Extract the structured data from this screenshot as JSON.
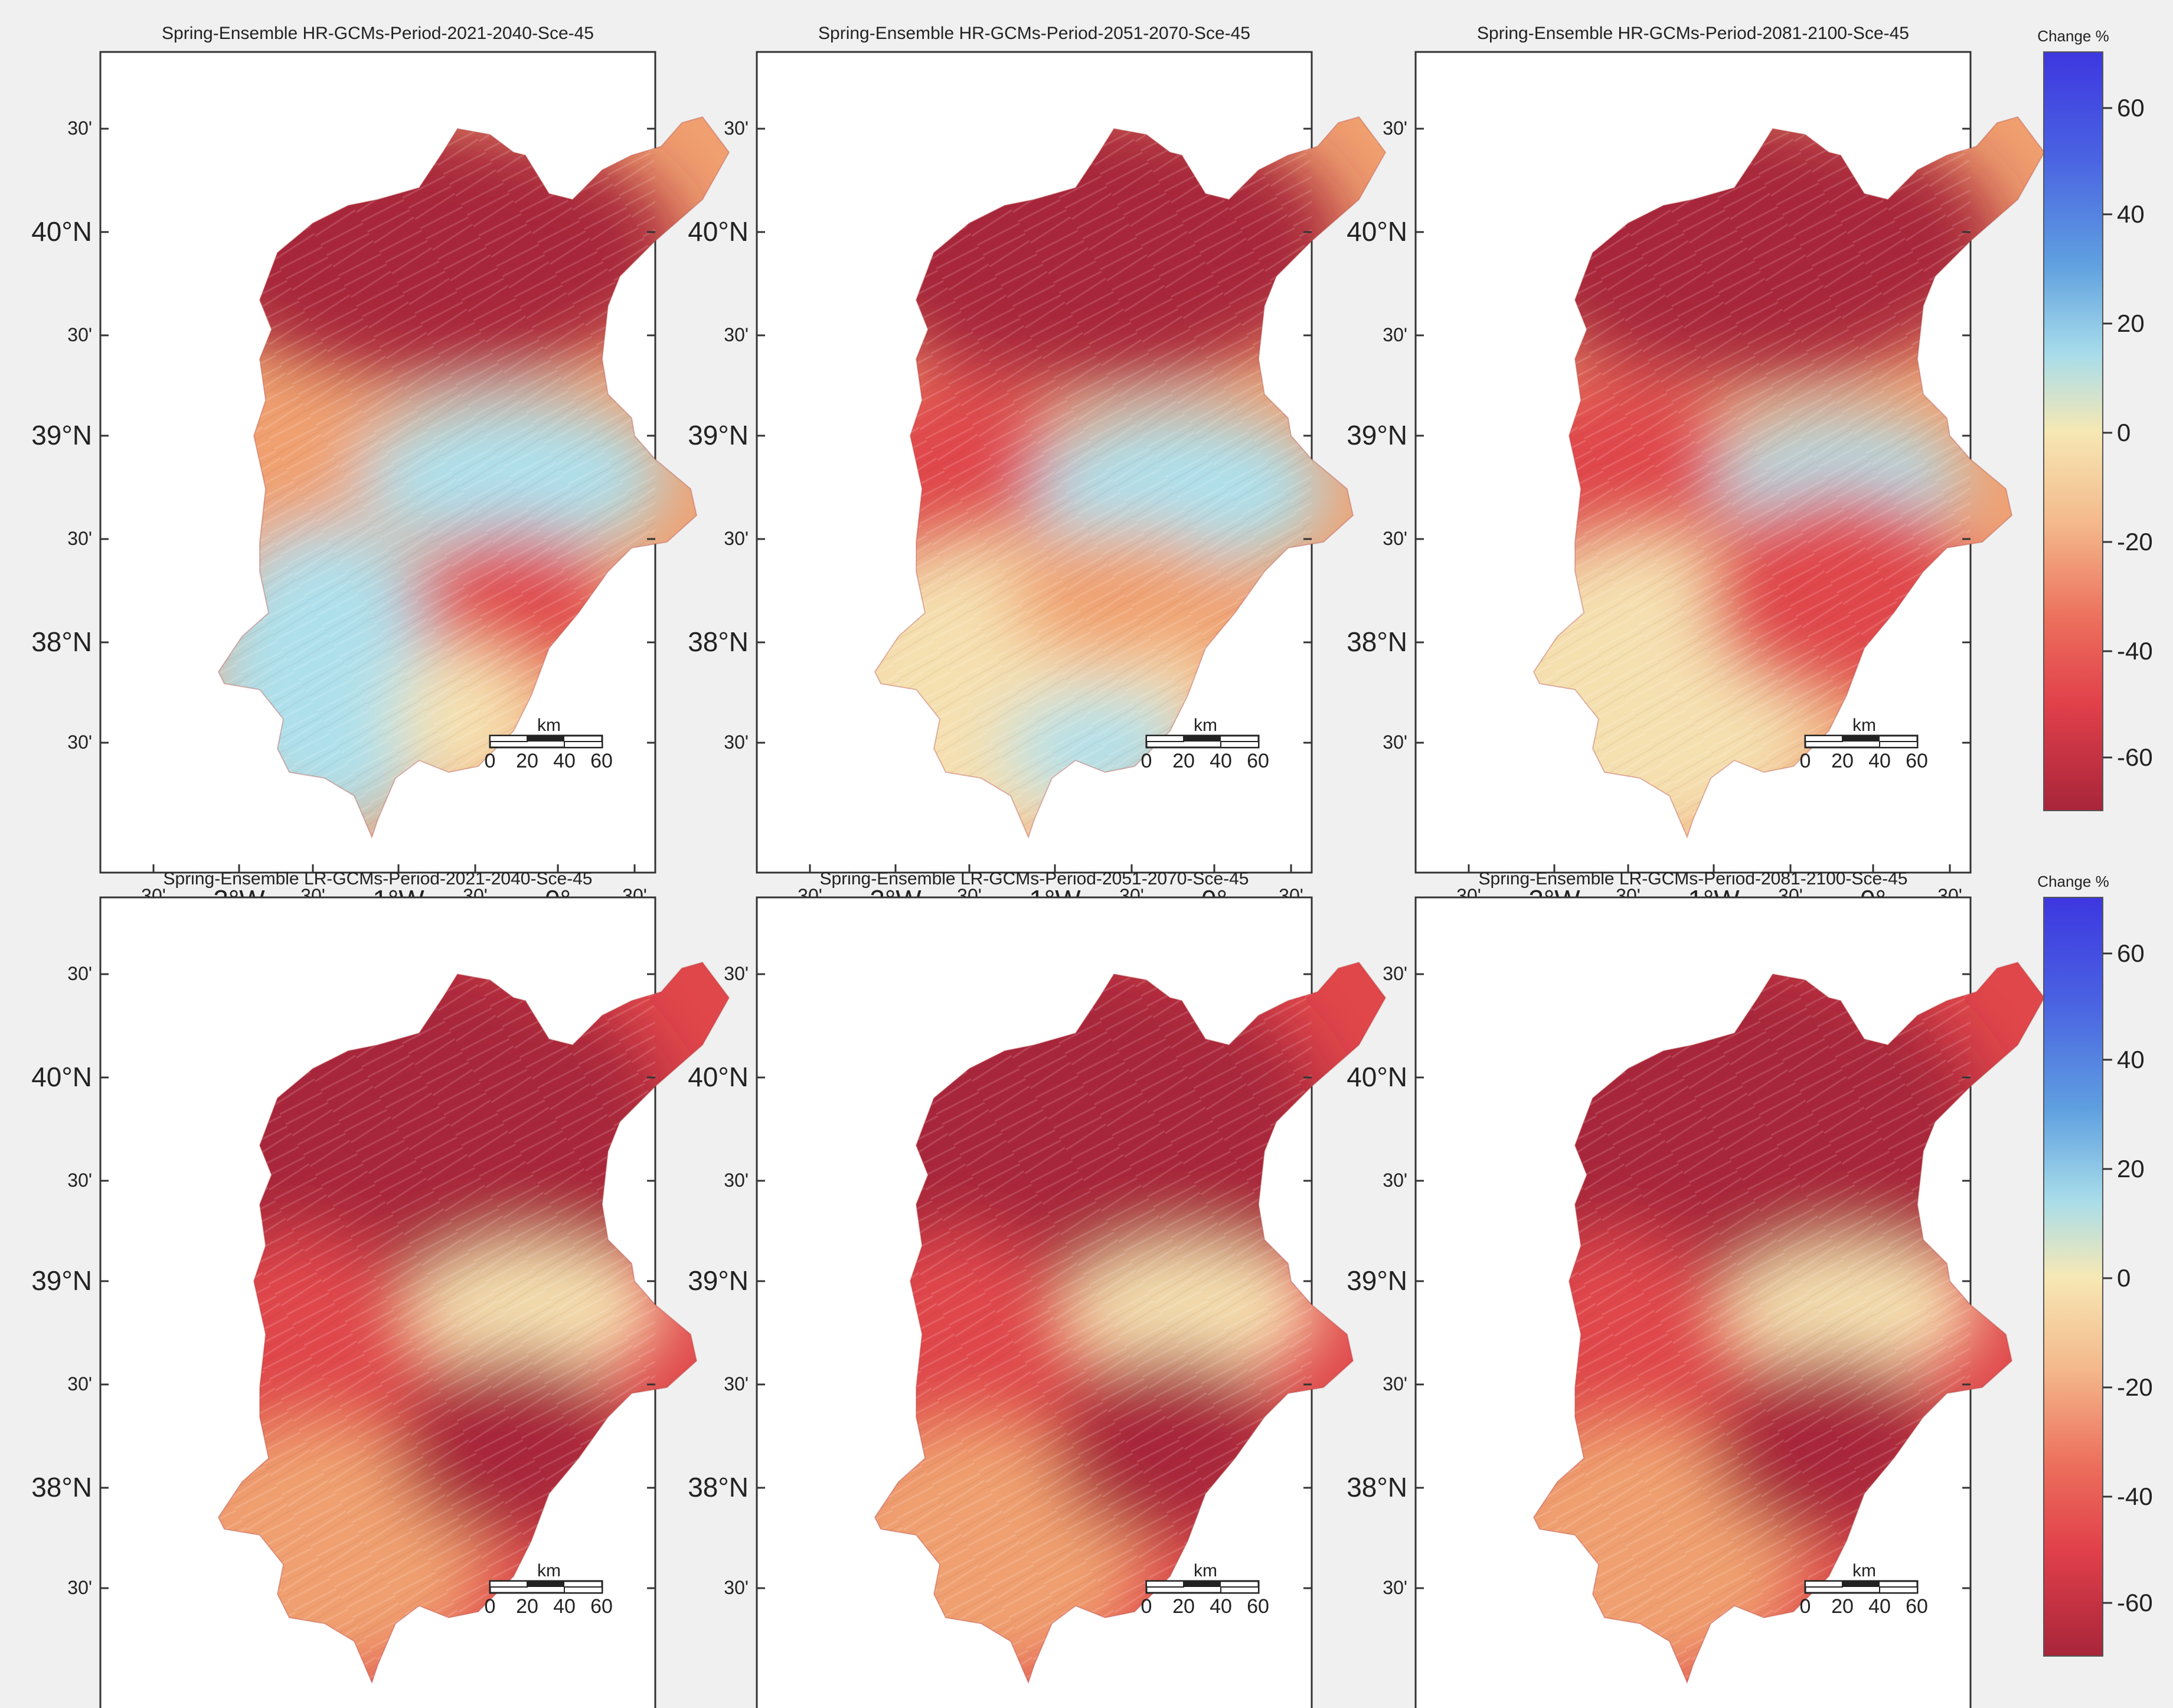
{
  "panels": [
    {
      "title": "Spring-Ensemble HR-GCMs-Period-2021-2040-Sce-45",
      "pattern": "hr2040"
    },
    {
      "title": "Spring-Ensemble HR-GCMs-Period-2051-2070-Sce-45",
      "pattern": "hr2070"
    },
    {
      "title": "Spring-Ensemble HR-GCMs-Period-2081-2100-Sce-45",
      "pattern": "hr2100"
    },
    {
      "title": "Spring-Ensemble LR-GCMs-Period-2021-2040-Sce-45",
      "pattern": "lr"
    },
    {
      "title": "Spring-Ensemble LR-GCMs-Period-2051-2070-Sce-45",
      "pattern": "lr"
    },
    {
      "title": "Spring-Ensemble LR-GCMs-Period-2081-2100-Sce-45",
      "pattern": "lr"
    }
  ],
  "lat_labels": [
    "30'",
    "40°N",
    "30'",
    "39°N",
    "30'",
    "38°N",
    "30'"
  ],
  "lon_labels": [
    "30'",
    "2°W",
    "30'",
    "1°W",
    "30'",
    "0°",
    "30'"
  ],
  "scalebar": {
    "unit": "km",
    "ticks": [
      "0",
      "20",
      "40",
      "60"
    ]
  },
  "colorbar": {
    "title": "Change %",
    "ticks": [
      "60",
      "40",
      "20",
      "0",
      "-20",
      "-40",
      "-60"
    ]
  },
  "colors": {
    "dark_red": "#a8253a",
    "red": "#e0474b",
    "orange": "#f0a070",
    "cream": "#f5e0b0",
    "light_blue": "#aee0ec",
    "blue": "#3d37e0"
  }
}
